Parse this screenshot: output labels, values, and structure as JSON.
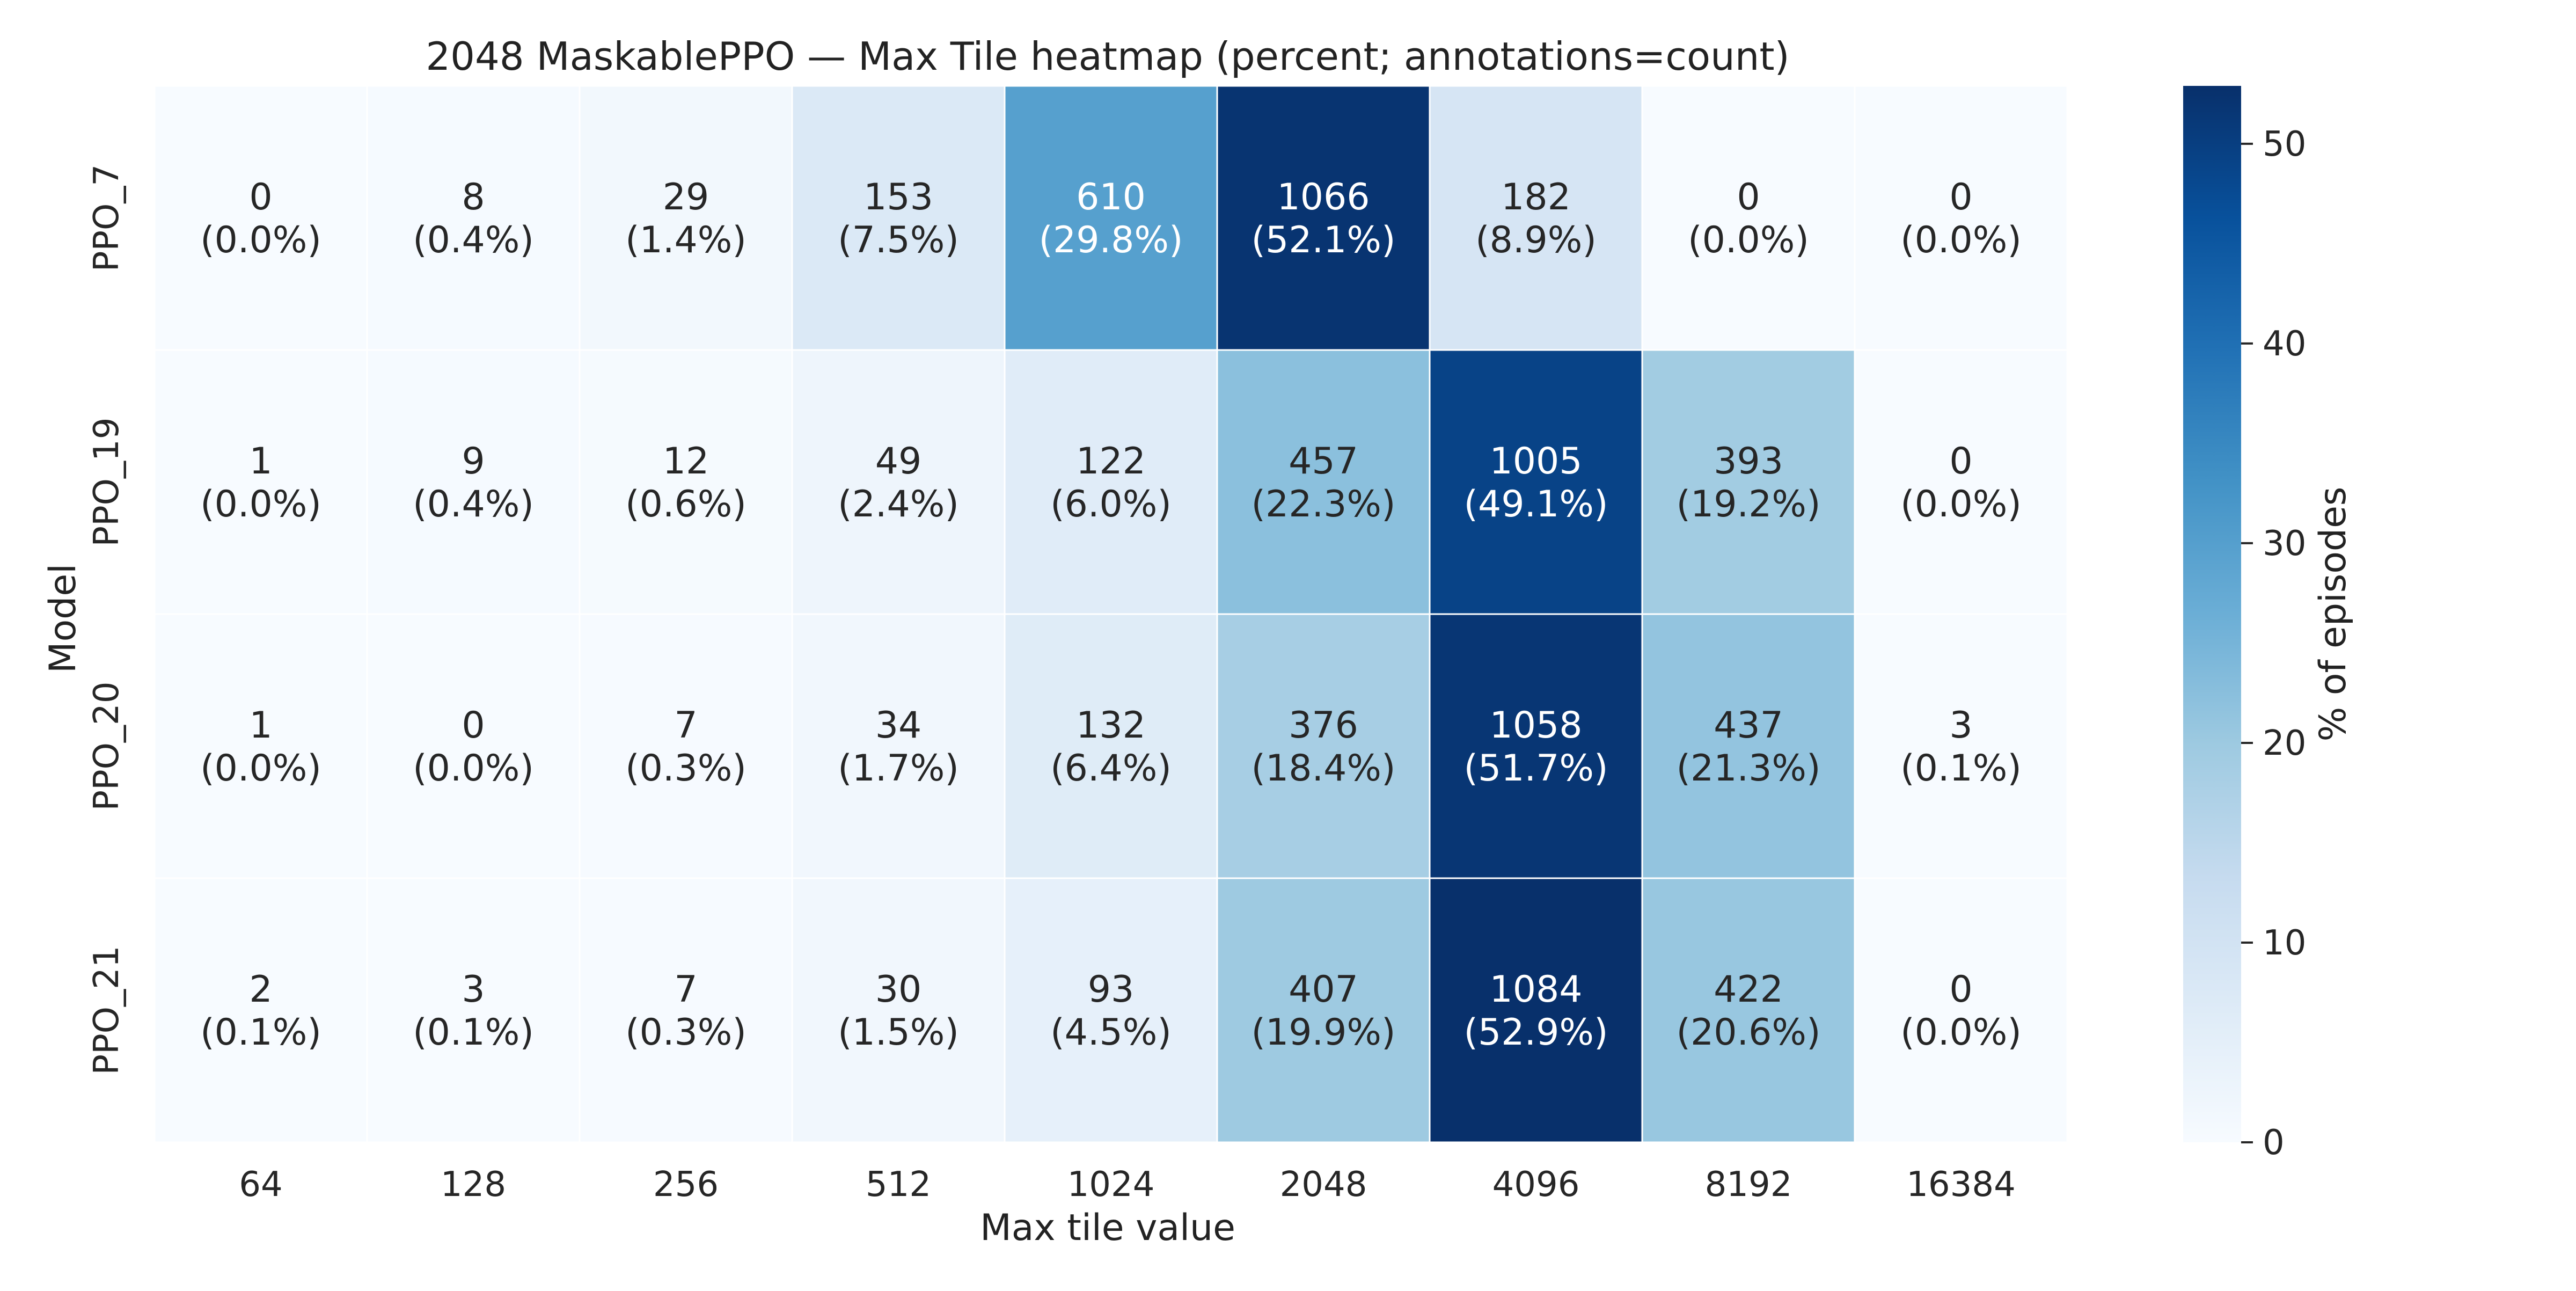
{
  "chart_data": {
    "type": "heatmap",
    "title": "2048 MaskablePPO — Max Tile heatmap (percent; annotations=count)",
    "xlabel": "Max tile value",
    "ylabel": "Model",
    "x_categories": [
      "64",
      "128",
      "256",
      "512",
      "1024",
      "2048",
      "4096",
      "8192",
      "16384"
    ],
    "y_categories": [
      "PPO_7",
      "PPO_19",
      "PPO_20",
      "PPO_21"
    ],
    "counts": [
      [
        0,
        8,
        29,
        153,
        610,
        1066,
        182,
        0,
        0
      ],
      [
        1,
        9,
        12,
        49,
        122,
        457,
        1005,
        393,
        0
      ],
      [
        1,
        0,
        7,
        34,
        132,
        376,
        1058,
        437,
        3
      ],
      [
        2,
        3,
        7,
        30,
        93,
        407,
        1084,
        422,
        0
      ]
    ],
    "percent_labels": [
      [
        "(0.0%)",
        "(0.4%)",
        "(1.4%)",
        "(7.5%)",
        "(29.8%)",
        "(52.1%)",
        "(8.9%)",
        "(0.0%)",
        "(0.0%)"
      ],
      [
        "(0.0%)",
        "(0.4%)",
        "(0.6%)",
        "(2.4%)",
        "(6.0%)",
        "(22.3%)",
        "(49.1%)",
        "(19.2%)",
        "(0.0%)"
      ],
      [
        "(0.0%)",
        "(0.0%)",
        "(0.3%)",
        "(1.7%)",
        "(6.4%)",
        "(18.4%)",
        "(51.7%)",
        "(21.3%)",
        "(0.1%)"
      ],
      [
        "(0.1%)",
        "(0.1%)",
        "(0.3%)",
        "(1.5%)",
        "(4.5%)",
        "(19.9%)",
        "(52.9%)",
        "(20.6%)",
        "(0.0%)"
      ]
    ],
    "percent_values": [
      [
        0.0,
        0.4,
        1.4,
        7.5,
        29.8,
        52.1,
        8.9,
        0.0,
        0.0
      ],
      [
        0.0,
        0.4,
        0.6,
        2.4,
        6.0,
        22.3,
        49.1,
        19.2,
        0.0
      ],
      [
        0.0,
        0.0,
        0.3,
        1.7,
        6.4,
        18.4,
        51.7,
        21.3,
        0.1
      ],
      [
        0.1,
        0.1,
        0.3,
        1.5,
        4.5,
        19.9,
        52.9,
        20.6,
        0.0
      ]
    ],
    "colorbar": {
      "label": "% of episodes",
      "range": [
        0,
        52.9
      ],
      "ticks": [
        0,
        10,
        20,
        30,
        40,
        50
      ],
      "colormap": "Blues"
    },
    "grid": false,
    "legend": "colorbar right"
  }
}
